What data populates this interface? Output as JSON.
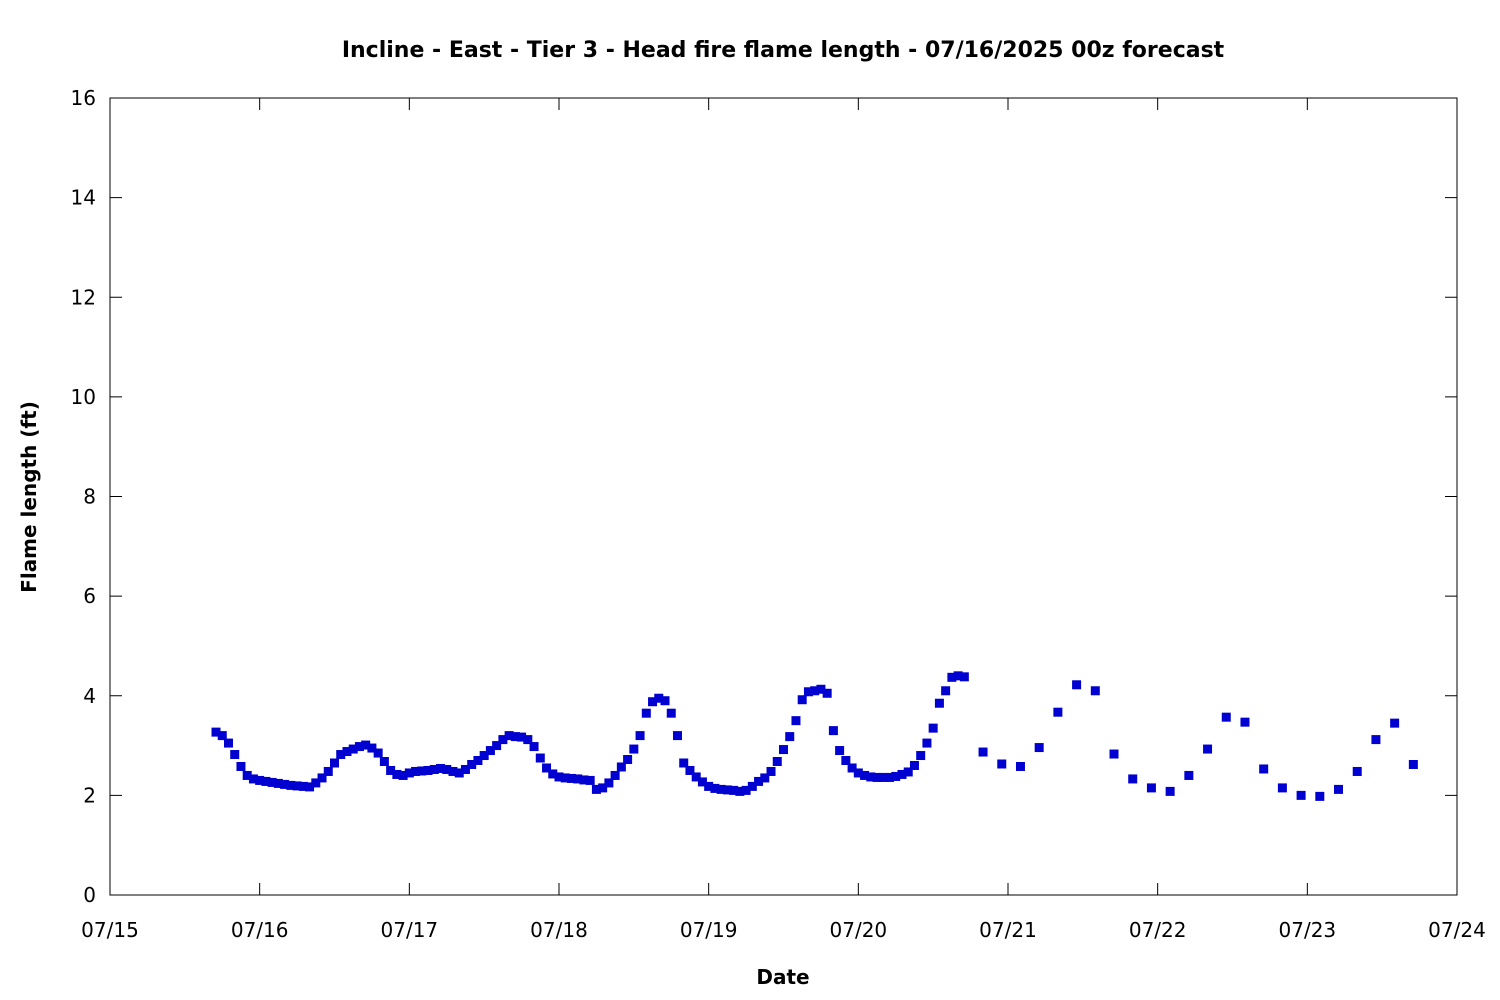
{
  "chart_data": {
    "type": "scatter",
    "title": "Incline - East - Tier 3 - Head fire flame length - 07/16/2025 00z forecast",
    "xlabel": "Date",
    "ylabel": "Flame length (ft)",
    "xlim": [
      "07/15 00:00",
      "07/24 00:00"
    ],
    "ylim": [
      0,
      16
    ],
    "x_tick_labels": [
      "07/15",
      "07/16",
      "07/17",
      "07/18",
      "07/19",
      "07/20",
      "07/21",
      "07/22",
      "07/23",
      "07/24"
    ],
    "y_tick_labels": [
      "0",
      "2",
      "4",
      "6",
      "8",
      "10",
      "12",
      "14",
      "16"
    ],
    "grid": false,
    "legend": "none",
    "marker_color": "#0000d0",
    "series": [
      {
        "x": [
          "07/15 17:00",
          "07/15 18:00",
          "07/15 19:00",
          "07/15 20:00",
          "07/15 21:00",
          "07/15 22:00",
          "07/15 23:00",
          "07/16 00:00",
          "07/16 01:00",
          "07/16 02:00",
          "07/16 03:00",
          "07/16 04:00",
          "07/16 05:00",
          "07/16 06:00",
          "07/16 07:00",
          "07/16 08:00",
          "07/16 09:00",
          "07/16 10:00",
          "07/16 11:00",
          "07/16 12:00",
          "07/16 13:00",
          "07/16 14:00",
          "07/16 15:00",
          "07/16 16:00",
          "07/16 17:00",
          "07/16 18:00",
          "07/16 19:00",
          "07/16 20:00",
          "07/16 21:00",
          "07/16 22:00",
          "07/16 23:00",
          "07/17 00:00",
          "07/17 01:00",
          "07/17 02:00",
          "07/17 03:00",
          "07/17 04:00",
          "07/17 05:00",
          "07/17 06:00",
          "07/17 07:00",
          "07/17 08:00",
          "07/17 09:00",
          "07/17 10:00",
          "07/17 11:00",
          "07/17 12:00",
          "07/17 13:00",
          "07/17 14:00",
          "07/17 15:00",
          "07/17 16:00",
          "07/17 17:00",
          "07/17 18:00",
          "07/17 19:00",
          "07/17 20:00",
          "07/17 21:00",
          "07/17 22:00",
          "07/17 23:00",
          "07/18 00:00",
          "07/18 01:00",
          "07/18 02:00",
          "07/18 03:00",
          "07/18 04:00",
          "07/18 05:00",
          "07/18 06:00",
          "07/18 07:00",
          "07/18 08:00",
          "07/18 09:00",
          "07/18 10:00",
          "07/18 11:00",
          "07/18 12:00",
          "07/18 13:00",
          "07/18 14:00",
          "07/18 15:00",
          "07/18 16:00",
          "07/18 17:00",
          "07/18 18:00",
          "07/18 19:00",
          "07/18 20:00",
          "07/18 21:00",
          "07/18 22:00",
          "07/18 23:00",
          "07/19 00:00",
          "07/19 01:00",
          "07/19 02:00",
          "07/19 03:00",
          "07/19 04:00",
          "07/19 05:00",
          "07/19 06:00",
          "07/19 07:00",
          "07/19 08:00",
          "07/19 09:00",
          "07/19 10:00",
          "07/19 11:00",
          "07/19 12:00",
          "07/19 13:00",
          "07/19 14:00",
          "07/19 15:00",
          "07/19 16:00",
          "07/19 17:00",
          "07/19 18:00",
          "07/19 19:00",
          "07/19 20:00",
          "07/19 21:00",
          "07/19 22:00",
          "07/19 23:00",
          "07/20 00:00",
          "07/20 01:00",
          "07/20 02:00",
          "07/20 03:00",
          "07/20 04:00",
          "07/20 05:00",
          "07/20 06:00",
          "07/20 07:00",
          "07/20 08:00",
          "07/20 09:00",
          "07/20 10:00",
          "07/20 11:00",
          "07/20 12:00",
          "07/20 13:00",
          "07/20 14:00",
          "07/20 15:00",
          "07/20 16:00",
          "07/20 17:00",
          "07/20 20:00",
          "07/20 23:00",
          "07/21 02:00",
          "07/21 05:00",
          "07/21 08:00",
          "07/21 11:00",
          "07/21 14:00",
          "07/21 17:00",
          "07/21 20:00",
          "07/21 23:00",
          "07/22 02:00",
          "07/22 05:00",
          "07/22 08:00",
          "07/22 11:00",
          "07/22 14:00",
          "07/22 17:00",
          "07/22 20:00",
          "07/22 23:00",
          "07/23 02:00",
          "07/23 05:00",
          "07/23 08:00",
          "07/23 11:00",
          "07/23 14:00",
          "07/23 17:00"
        ],
        "y": [
          3.27,
          3.2,
          3.05,
          2.82,
          2.58,
          2.4,
          2.33,
          2.3,
          2.28,
          2.26,
          2.24,
          2.22,
          2.2,
          2.19,
          2.18,
          2.17,
          2.25,
          2.35,
          2.48,
          2.65,
          2.82,
          2.88,
          2.93,
          2.98,
          3.01,
          2.95,
          2.85,
          2.68,
          2.5,
          2.42,
          2.4,
          2.45,
          2.48,
          2.49,
          2.5,
          2.52,
          2.54,
          2.52,
          2.48,
          2.45,
          2.52,
          2.62,
          2.7,
          2.8,
          2.9,
          3.0,
          3.12,
          3.2,
          3.18,
          3.17,
          3.12,
          2.98,
          2.75,
          2.55,
          2.43,
          2.37,
          2.35,
          2.34,
          2.33,
          2.31,
          2.3,
          2.12,
          2.15,
          2.25,
          2.4,
          2.57,
          2.72,
          2.93,
          3.2,
          3.65,
          3.88,
          3.95,
          3.9,
          3.65,
          3.2,
          2.65,
          2.5,
          2.37,
          2.27,
          2.18,
          2.14,
          2.12,
          2.11,
          2.1,
          2.08,
          2.1,
          2.18,
          2.28,
          2.35,
          2.48,
          2.68,
          2.92,
          3.18,
          3.5,
          3.92,
          4.08,
          4.1,
          4.13,
          4.05,
          3.3,
          2.9,
          2.7,
          2.55,
          2.45,
          2.4,
          2.37,
          2.36,
          2.36,
          2.36,
          2.38,
          2.42,
          2.47,
          2.6,
          2.8,
          3.05,
          3.35,
          3.85,
          4.1,
          4.37,
          4.4,
          4.38,
          2.87,
          2.63,
          2.58,
          2.96,
          3.67,
          4.22,
          4.1,
          2.83,
          2.33,
          2.15,
          2.08,
          2.4,
          2.93,
          3.57,
          3.47,
          2.53,
          2.15,
          2.0,
          1.98,
          2.12,
          2.48,
          3.12,
          3.45,
          2.62
        ]
      }
    ]
  }
}
